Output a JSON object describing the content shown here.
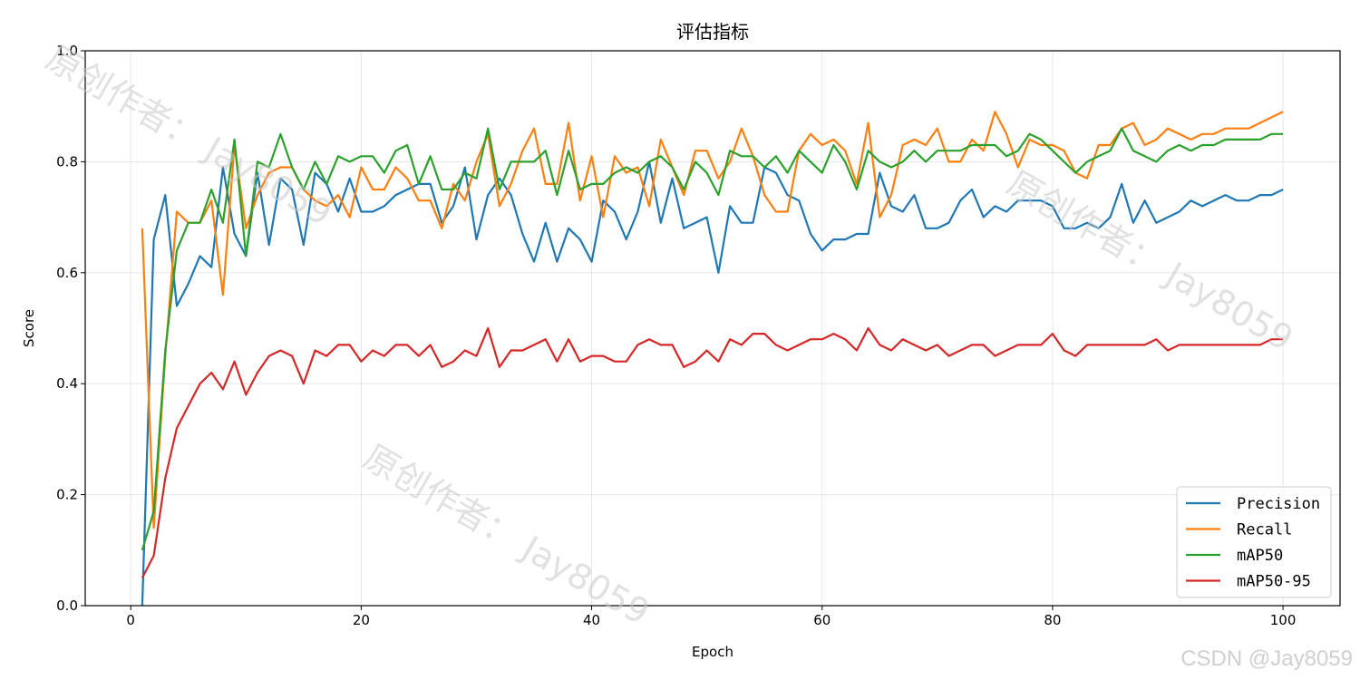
{
  "chart_data": {
    "type": "line",
    "title": "评估指标",
    "xlabel": "Epoch",
    "ylabel": "Score",
    "xlim": [
      -3.95,
      104.95
    ],
    "ylim": [
      0,
      1.0
    ],
    "xticks": [
      0,
      20,
      40,
      60,
      80,
      100
    ],
    "yticks": [
      0.0,
      0.2,
      0.4,
      0.6,
      0.8,
      1.0
    ],
    "xtick_labels": [
      "0",
      "20",
      "40",
      "60",
      "80",
      "100"
    ],
    "ytick_labels": [
      "0.0",
      "0.2",
      "0.4",
      "0.6",
      "0.8",
      "1.0"
    ],
    "grid": true,
    "legend_position": "lower-right",
    "series": [
      {
        "name": "Precision",
        "color": "#1f77b4",
        "values": [
          0.0,
          0.66,
          0.74,
          0.54,
          0.58,
          0.63,
          0.61,
          0.79,
          0.67,
          0.63,
          0.78,
          0.65,
          0.77,
          0.75,
          0.65,
          0.78,
          0.76,
          0.71,
          0.77,
          0.71,
          0.71,
          0.72,
          0.74,
          0.75,
          0.76,
          0.76,
          0.69,
          0.72,
          0.79,
          0.66,
          0.74,
          0.77,
          0.74,
          0.67,
          0.62,
          0.69,
          0.62,
          0.68,
          0.66,
          0.62,
          0.73,
          0.71,
          0.66,
          0.71,
          0.8,
          0.69,
          0.77,
          0.68,
          0.69,
          0.7,
          0.6,
          0.72,
          0.69,
          0.69,
          0.79,
          0.78,
          0.74,
          0.73,
          0.67,
          0.64,
          0.66,
          0.66,
          0.67,
          0.67,
          0.78,
          0.72,
          0.71,
          0.74,
          0.68,
          0.68,
          0.69,
          0.73,
          0.75,
          0.7,
          0.72,
          0.71,
          0.73,
          0.73,
          0.73,
          0.72,
          0.68,
          0.68,
          0.69,
          0.68,
          0.7,
          0.76,
          0.69,
          0.73,
          0.69,
          0.7,
          0.71,
          0.73,
          0.72,
          0.73,
          0.74,
          0.73,
          0.73,
          0.74,
          0.74,
          0.75
        ]
      },
      {
        "name": "Recall",
        "color": "#ff7f0e",
        "values": [
          0.68,
          0.14,
          0.45,
          0.71,
          0.69,
          0.69,
          0.73,
          0.56,
          0.83,
          0.68,
          0.74,
          0.78,
          0.79,
          0.79,
          0.75,
          0.73,
          0.72,
          0.74,
          0.7,
          0.79,
          0.75,
          0.75,
          0.79,
          0.77,
          0.73,
          0.73,
          0.68,
          0.76,
          0.73,
          0.8,
          0.85,
          0.72,
          0.76,
          0.82,
          0.86,
          0.76,
          0.76,
          0.87,
          0.73,
          0.81,
          0.7,
          0.81,
          0.78,
          0.79,
          0.72,
          0.84,
          0.79,
          0.74,
          0.82,
          0.82,
          0.77,
          0.8,
          0.86,
          0.81,
          0.74,
          0.71,
          0.71,
          0.82,
          0.85,
          0.83,
          0.84,
          0.82,
          0.76,
          0.87,
          0.7,
          0.74,
          0.83,
          0.84,
          0.83,
          0.86,
          0.8,
          0.8,
          0.84,
          0.82,
          0.89,
          0.85,
          0.79,
          0.84,
          0.83,
          0.83,
          0.82,
          0.78,
          0.77,
          0.83,
          0.83,
          0.86,
          0.87,
          0.83,
          0.84,
          0.86,
          0.85,
          0.84,
          0.85,
          0.85,
          0.86,
          0.86,
          0.86,
          0.87,
          0.88,
          0.89
        ]
      },
      {
        "name": "mAP50",
        "color": "#2ca02c",
        "values": [
          0.1,
          0.17,
          0.46,
          0.64,
          0.69,
          0.69,
          0.75,
          0.69,
          0.84,
          0.63,
          0.8,
          0.79,
          0.85,
          0.79,
          0.75,
          0.8,
          0.76,
          0.81,
          0.8,
          0.81,
          0.81,
          0.78,
          0.82,
          0.83,
          0.76,
          0.81,
          0.75,
          0.75,
          0.78,
          0.77,
          0.86,
          0.75,
          0.8,
          0.8,
          0.8,
          0.82,
          0.74,
          0.82,
          0.75,
          0.76,
          0.76,
          0.78,
          0.79,
          0.78,
          0.8,
          0.81,
          0.79,
          0.75,
          0.8,
          0.78,
          0.74,
          0.82,
          0.81,
          0.81,
          0.79,
          0.81,
          0.78,
          0.82,
          0.8,
          0.78,
          0.83,
          0.8,
          0.75,
          0.82,
          0.8,
          0.79,
          0.8,
          0.82,
          0.8,
          0.82,
          0.82,
          0.82,
          0.83,
          0.83,
          0.83,
          0.81,
          0.82,
          0.85,
          0.84,
          0.82,
          0.8,
          0.78,
          0.8,
          0.81,
          0.82,
          0.86,
          0.82,
          0.81,
          0.8,
          0.82,
          0.83,
          0.82,
          0.83,
          0.83,
          0.84,
          0.84,
          0.84,
          0.84,
          0.85,
          0.85
        ]
      },
      {
        "name": "mAP50-95",
        "color": "#d62728",
        "values": [
          0.05,
          0.09,
          0.23,
          0.32,
          0.36,
          0.4,
          0.42,
          0.39,
          0.44,
          0.38,
          0.42,
          0.45,
          0.46,
          0.45,
          0.4,
          0.46,
          0.45,
          0.47,
          0.47,
          0.44,
          0.46,
          0.45,
          0.47,
          0.47,
          0.45,
          0.47,
          0.43,
          0.44,
          0.46,
          0.45,
          0.5,
          0.43,
          0.46,
          0.46,
          0.47,
          0.48,
          0.44,
          0.48,
          0.44,
          0.45,
          0.45,
          0.44,
          0.44,
          0.47,
          0.48,
          0.47,
          0.47,
          0.43,
          0.44,
          0.46,
          0.44,
          0.48,
          0.47,
          0.49,
          0.49,
          0.47,
          0.46,
          0.47,
          0.48,
          0.48,
          0.49,
          0.48,
          0.46,
          0.5,
          0.47,
          0.46,
          0.48,
          0.47,
          0.46,
          0.47,
          0.45,
          0.46,
          0.47,
          0.47,
          0.45,
          0.46,
          0.47,
          0.47,
          0.47,
          0.49,
          0.46,
          0.45,
          0.47,
          0.47,
          0.47,
          0.47,
          0.47,
          0.47,
          0.48,
          0.46,
          0.47,
          0.47,
          0.47,
          0.47,
          0.47,
          0.47,
          0.47,
          0.47,
          0.48,
          0.48
        ]
      }
    ]
  },
  "watermarks": {
    "text": "原创作者： Jay8059",
    "credit": "CSDN @Jay8059"
  }
}
